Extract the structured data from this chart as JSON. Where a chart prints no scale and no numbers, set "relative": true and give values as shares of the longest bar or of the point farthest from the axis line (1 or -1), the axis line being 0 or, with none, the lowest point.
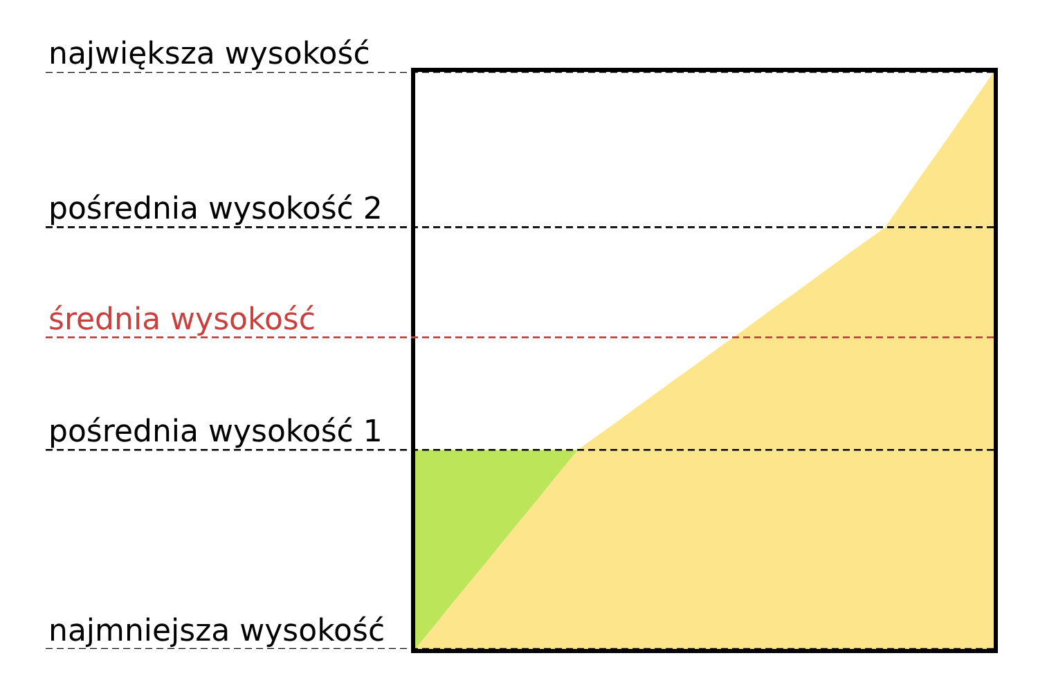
{
  "chart_data": {
    "type": "area",
    "relative": true,
    "stacked": true,
    "categories": [
      null,
      null,
      null,
      null,
      null,
      null,
      null,
      null,
      null,
      null,
      null,
      null,
      null,
      null,
      null,
      null,
      null,
      null,
      null,
      null,
      null,
      null,
      null,
      null,
      null,
      null,
      null,
      null,
      null,
      null,
      null,
      null,
      null
    ],
    "series": [
      {
        "color": "#fde58c",
        "values": [
          0,
          0.038,
          0.077,
          0.115,
          0.153,
          0.192,
          0.23,
          0.268,
          0.307,
          0.345,
          0.368,
          0.39,
          0.413,
          0.436,
          0.459,
          0.481,
          0.504,
          0.527,
          0.549,
          0.572,
          0.595,
          0.617,
          0.64,
          0.663,
          0.686,
          0.708,
          0.731,
          0.776,
          0.821,
          0.865,
          0.91,
          0.955,
          1.0
        ]
      },
      {
        "color": "#bde55a",
        "values": [
          0.345,
          0.307,
          0.268,
          0.23,
          0.192,
          0.153,
          0.115,
          0.077,
          0.038,
          0,
          null,
          null,
          null,
          null,
          null,
          null,
          null,
          null,
          null,
          null,
          null,
          null,
          null,
          null,
          null,
          null,
          null,
          null,
          null,
          null,
          null,
          null,
          null
        ]
      }
    ],
    "ref_lines": [
      {
        "axis": "y",
        "value": 1.0,
        "label": "największa wysokość",
        "line_style": "dashed"
      },
      {
        "axis": "y",
        "value": 0.731,
        "label": "pośrednia wysokość 2",
        "line_style": "dashed"
      },
      {
        "axis": "y",
        "value": 0.54,
        "label": "średnia wysokość",
        "color": "#c8413f",
        "line_style": "dashed"
      },
      {
        "axis": "y",
        "value": 0.345,
        "label": "pośrednia wysokość 1",
        "line_style": "dashed"
      },
      {
        "axis": "y",
        "value": 0,
        "label": "najmniejsza wysokość",
        "line_style": "dashed"
      }
    ]
  }
}
